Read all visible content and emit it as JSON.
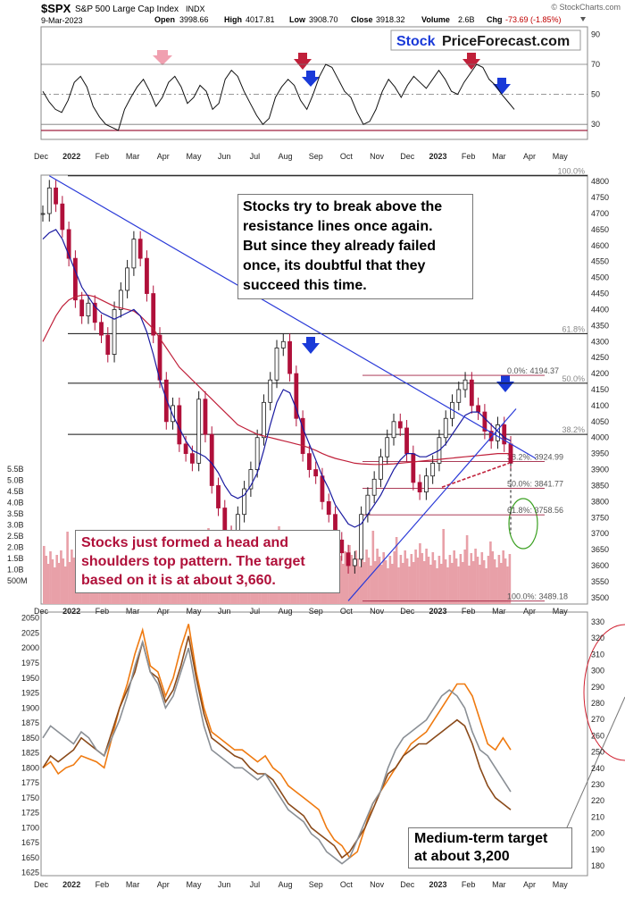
{
  "header": {
    "symbol": "$SPX",
    "name": "S&P 500 Large Cap Index",
    "exchange": "INDX",
    "date": "9-Mar-2023",
    "open_label": "Open",
    "open": "3998.66",
    "high_label": "High",
    "high": "4017.81",
    "low_label": "Low",
    "low": "3908.70",
    "close_label": "Close",
    "close": "3918.32",
    "volume_label": "Volume",
    "volume": "2.6B",
    "chg_label": "Chg",
    "chg": "-73.69 (-1.85%)",
    "credit": "© StockCharts.com"
  },
  "logo": {
    "part1": "Stock",
    "part2": "PriceForecast.com"
  },
  "colors": {
    "price": "#1a1a1a",
    "down_candle": "#b0103a",
    "ma50": "#1a1aa0",
    "ma200": "#c0203a",
    "trendline": "#2a3ad8",
    "rsi_arrow_red": "#c0203a",
    "rsi_arrow_pink": "#f0a0b0",
    "rsi_arrow_blue": "#1a3ad8",
    "volume": "#e8a0a8",
    "fib": "#a02040",
    "gold_target": "#3aa020",
    "annotation_red": "#b0103a",
    "line_orange": "#ef7a10",
    "line_brown": "#8a4a1a",
    "line_gray": "#8a8f95"
  },
  "x_axis_labels": [
    "Dec",
    "2022",
    "Feb",
    "Mar",
    "Apr",
    "May",
    "Jun",
    "Jul",
    "Aug",
    "Sep",
    "Oct",
    "Nov",
    "Dec",
    "2023",
    "Feb",
    "Mar",
    "Apr",
    "May"
  ],
  "annotations": {
    "top": [
      "Stocks try to break above the",
      "resistance lines once again.",
      "But since they already failed",
      "once, its doubtful that they",
      "succeed this time."
    ],
    "head_shoulders": [
      "Stocks just formed a head and",
      "shoulders top pattern. The target",
      "based on it is at about 3,660."
    ],
    "medium_term": [
      "Medium-term target",
      "at about 3,200"
    ]
  },
  "chart_data": [
    {
      "panel": "rsi",
      "type": "line",
      "yticks": [
        90,
        70,
        50,
        30
      ],
      "ylim": [
        20,
        95
      ],
      "levels": [
        70,
        50,
        30
      ],
      "values": [
        52,
        45,
        40,
        38,
        46,
        58,
        62,
        55,
        42,
        35,
        30,
        28,
        26,
        40,
        48,
        55,
        60,
        52,
        42,
        48,
        58,
        62,
        55,
        44,
        48,
        56,
        52,
        40,
        44,
        60,
        66,
        62,
        52,
        44,
        36,
        30,
        34,
        48,
        55,
        60,
        56,
        46,
        40,
        50,
        62,
        70,
        68,
        60,
        52,
        48,
        38,
        30,
        32,
        40,
        52,
        60,
        55,
        48,
        56,
        62,
        58,
        54,
        60,
        66,
        60,
        52,
        50,
        58,
        64,
        70,
        68,
        60,
        56,
        50,
        45,
        40
      ]
    },
    {
      "panel": "price",
      "type": "line",
      "yticks": [
        4800,
        4750,
        4700,
        4650,
        4600,
        4550,
        4500,
        4450,
        4400,
        4350,
        4300,
        4250,
        4200,
        4150,
        4100,
        4050,
        4000,
        3950,
        3900,
        3850,
        3800,
        3750,
        3700,
        3650,
        3600,
        3550,
        3500
      ],
      "ylim": [
        3480,
        4820
      ],
      "volume_ticks": [
        "5.5B",
        "5.0B",
        "4.5B",
        "4.0B",
        "3.5B",
        "3.0B",
        "2.5B",
        "2.0B",
        "1.5B",
        "1.0B",
        "500M"
      ],
      "fib_labels": [
        {
          "label": "100.0%",
          "value": 4818
        },
        {
          "label": "61.8%",
          "value": 4325
        },
        {
          "label": "0.0%",
          "text": "0.0%: 4194.37",
          "value": 4194.37
        },
        {
          "label": "50.0%",
          "value": 4170
        },
        {
          "label": "38.2%",
          "value": 4010
        },
        {
          "label": "38.2%",
          "text": "38.2%: 3924.99",
          "value": 3924.99
        },
        {
          "label": "50.0%",
          "text": "50.0%: 3841.77",
          "value": 3841.77
        },
        {
          "label": "61.8%",
          "text": "61.8%: 3758.56",
          "value": 3758.56
        },
        {
          "label": "100.0%",
          "text": "100.0%: 3489.18",
          "value": 3489.18
        }
      ],
      "close": [
        4700,
        4780,
        4730,
        4650,
        4560,
        4430,
        4380,
        4420,
        4360,
        4320,
        4260,
        4400,
        4460,
        4530,
        4620,
        4560,
        4450,
        4320,
        4180,
        4050,
        4100,
        3980,
        3950,
        3920,
        4120,
        4010,
        3850,
        3780,
        3700,
        3650,
        3760,
        3840,
        3900,
        4000,
        4110,
        4180,
        4280,
        4300,
        4200,
        4060,
        3950,
        3900,
        3880,
        3800,
        3760,
        3680,
        3640,
        3600,
        3620,
        3760,
        3820,
        3870,
        3940,
        4000,
        4050,
        4030,
        3950,
        3860,
        3830,
        3880,
        3920,
        4000,
        4060,
        4110,
        4150,
        4180,
        4100,
        4080,
        4020,
        3990,
        4040,
        3980,
        3920
      ],
      "ma50": [
        4620,
        4640,
        4650,
        4620,
        4570,
        4520,
        4470,
        4440,
        4410,
        4390,
        4380,
        4370,
        4380,
        4390,
        4400,
        4380,
        4330,
        4260,
        4180,
        4120,
        4070,
        4030,
        3990,
        3960,
        3950,
        3940,
        3920,
        3890,
        3850,
        3820,
        3810,
        3820,
        3850,
        3890,
        3960,
        4040,
        4110,
        4150,
        4140,
        4090,
        4030,
        3980,
        3930,
        3880,
        3840,
        3790,
        3760,
        3730,
        3720,
        3730,
        3760,
        3790,
        3820,
        3860,
        3900,
        3930,
        3950,
        3950,
        3940,
        3940,
        3950,
        3960,
        3980,
        4010,
        4040,
        4070,
        4080,
        4080,
        4060,
        4040,
        4020,
        4000,
        3990
      ],
      "ma200": [
        4300,
        4340,
        4380,
        4410,
        4430,
        4440,
        4445,
        4445,
        4440,
        4430,
        4420,
        4410,
        4405,
        4400,
        4395,
        4380,
        4360,
        4340,
        4310,
        4280,
        4250,
        4220,
        4200,
        4180,
        4160,
        4140,
        4120,
        4100,
        4080,
        4060,
        4040,
        4030,
        4020,
        4010,
        4005,
        4000,
        3995,
        3990,
        3985,
        3980,
        3975,
        3968,
        3960,
        3950,
        3942,
        3935,
        3930,
        3925,
        3920,
        3918,
        3917,
        3916,
        3916,
        3917,
        3918,
        3920,
        3922,
        3924,
        3926,
        3928,
        3930,
        3932,
        3934,
        3936,
        3938,
        3940,
        3942,
        3944,
        3946,
        3948,
        3950,
        3950,
        3950
      ]
    },
    {
      "panel": "comparison",
      "type": "line",
      "yticks_left": [
        2050,
        2025,
        2000,
        1975,
        1950,
        1925,
        1900,
        1875,
        1850,
        1825,
        1800,
        1775,
        1750,
        1725,
        1700,
        1675,
        1650,
        1625
      ],
      "yticks_right": [
        330,
        320,
        310,
        300,
        290,
        280,
        270,
        260,
        250,
        240,
        230,
        220,
        210,
        200,
        190,
        180
      ],
      "ylim": [
        1620,
        2060
      ],
      "series": [
        {
          "values": [
            1800,
            1810,
            1790,
            1800,
            1805,
            1820,
            1815,
            1810,
            1800,
            1850,
            1900,
            1940,
            1990,
            2030,
            1970,
            1960,
            1920,
            1950,
            2000,
            2040,
            1960,
            1900,
            1860,
            1850,
            1840,
            1830,
            1830,
            1820,
            1810,
            1820,
            1800,
            1790,
            1770,
            1760,
            1750,
            1740,
            1730,
            1700,
            1680,
            1670,
            1650,
            1660,
            1700,
            1740,
            1760,
            1780,
            1800,
            1820,
            1840,
            1850,
            1860,
            1880,
            1900,
            1920,
            1940,
            1940,
            1920,
            1880,
            1840,
            1830,
            1850,
            1830
          ]
        },
        {
          "values": [
            1800,
            1820,
            1810,
            1820,
            1830,
            1850,
            1840,
            1830,
            1820,
            1860,
            1900,
            1930,
            1960,
            2010,
            1960,
            1950,
            1910,
            1930,
            1970,
            2020,
            1950,
            1890,
            1850,
            1840,
            1830,
            1820,
            1815,
            1800,
            1790,
            1790,
            1780,
            1760,
            1740,
            1730,
            1720,
            1700,
            1690,
            1680,
            1670,
            1650,
            1660,
            1680,
            1700,
            1730,
            1760,
            1790,
            1800,
            1820,
            1830,
            1840,
            1840,
            1850,
            1860,
            1870,
            1880,
            1870,
            1840,
            1800,
            1770,
            1750,
            1740,
            1730
          ]
        },
        {
          "values": [
            1850,
            1870,
            1860,
            1850,
            1840,
            1860,
            1850,
            1830,
            1820,
            1850,
            1880,
            1920,
            1970,
            2010,
            1960,
            1940,
            1900,
            1920,
            1960,
            2000,
            1930,
            1870,
            1830,
            1820,
            1810,
            1800,
            1800,
            1790,
            1780,
            1790,
            1770,
            1750,
            1730,
            1720,
            1710,
            1690,
            1680,
            1660,
            1650,
            1640,
            1650,
            1680,
            1710,
            1740,
            1760,
            1800,
            1830,
            1850,
            1860,
            1870,
            1880,
            1900,
            1920,
            1930,
            1920,
            1900,
            1860,
            1830,
            1820,
            1800,
            1780,
            1760
          ]
        }
      ]
    }
  ]
}
